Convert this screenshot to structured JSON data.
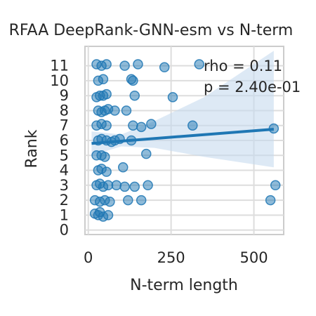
{
  "chart_data": {
    "type": "scatter",
    "title": "RFAA DeepRank-GNN-esm vs N-term",
    "xlabel": "N-term length",
    "ylabel": "Rank",
    "xlim": [
      -10,
      590
    ],
    "ylim": [
      -0.3,
      12.3
    ],
    "xticks": [
      0,
      250,
      500
    ],
    "yticks": [
      0,
      1,
      2,
      3,
      4,
      5,
      6,
      7,
      8,
      9,
      10,
      11
    ],
    "grid": true,
    "annotations": [
      "rho = 0.11",
      "p = 2.40e-01"
    ],
    "regression": {
      "x": [
        10,
        560
      ],
      "y": [
        5.8,
        6.75
      ]
    },
    "ci_band": {
      "x": [
        10,
        100,
        200,
        350,
        560
      ],
      "upper": [
        6.6,
        6.4,
        7.3,
        8.9,
        12.0
      ],
      "lower": [
        5.0,
        5.6,
        5.5,
        4.9,
        4.2
      ]
    },
    "colors": {
      "points": "#1f77b4",
      "line": "#1f77b4",
      "band": "#c6dbef"
    },
    "points": [
      [
        20,
        1.1
      ],
      [
        30,
        1.0
      ],
      [
        45,
        0.9
      ],
      [
        60,
        1.0
      ],
      [
        35,
        1.2
      ],
      [
        20,
        2.0
      ],
      [
        35,
        1.9
      ],
      [
        50,
        2.0
      ],
      [
        65,
        1.9
      ],
      [
        120,
        2.0
      ],
      [
        160,
        2.0
      ],
      [
        550,
        2.0
      ],
      [
        25,
        3.0
      ],
      [
        35,
        3.1
      ],
      [
        45,
        2.9
      ],
      [
        60,
        3.0
      ],
      [
        85,
        3.0
      ],
      [
        110,
        2.9
      ],
      [
        140,
        2.9
      ],
      [
        180,
        3.0
      ],
      [
        565,
        3.0
      ],
      [
        30,
        4.0
      ],
      [
        40,
        4.1
      ],
      [
        55,
        3.9
      ],
      [
        105,
        4.2
      ],
      [
        25,
        5.0
      ],
      [
        40,
        5.0
      ],
      [
        50,
        4.9
      ],
      [
        175,
        5.1
      ],
      [
        30,
        6.0
      ],
      [
        40,
        6.1
      ],
      [
        55,
        6.0
      ],
      [
        70,
        5.9
      ],
      [
        80,
        6.0
      ],
      [
        130,
        6.0
      ],
      [
        95,
        6.1
      ],
      [
        25,
        7.0
      ],
      [
        40,
        7.1
      ],
      [
        55,
        7.0
      ],
      [
        135,
        7.0
      ],
      [
        160,
        6.9
      ],
      [
        190,
        7.1
      ],
      [
        315,
        7.0
      ],
      [
        560,
        6.8
      ],
      [
        30,
        8.0
      ],
      [
        40,
        7.9
      ],
      [
        50,
        8.0
      ],
      [
        60,
        8.1
      ],
      [
        80,
        8.0
      ],
      [
        115,
        8.0
      ],
      [
        25,
        8.9
      ],
      [
        35,
        9.0
      ],
      [
        45,
        9.0
      ],
      [
        55,
        9.1
      ],
      [
        140,
        9.0
      ],
      [
        255,
        8.9
      ],
      [
        30,
        10.0
      ],
      [
        45,
        10.1
      ],
      [
        130,
        10.1
      ],
      [
        135,
        10.0
      ],
      [
        25,
        11.1
      ],
      [
        40,
        11.0
      ],
      [
        55,
        11.1
      ],
      [
        110,
        11.0
      ],
      [
        150,
        11.1
      ],
      [
        230,
        10.9
      ],
      [
        335,
        11.1
      ]
    ]
  }
}
